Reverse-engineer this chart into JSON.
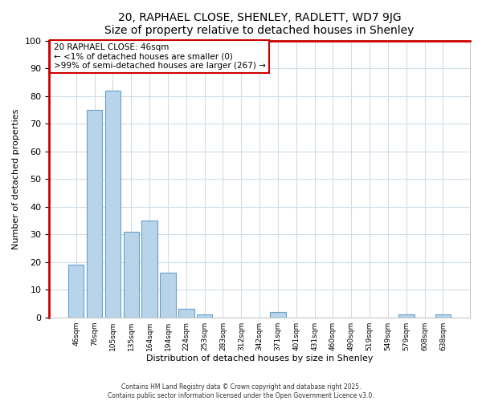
{
  "title": "20, RAPHAEL CLOSE, SHENLEY, RADLETT, WD7 9JG",
  "subtitle": "Size of property relative to detached houses in Shenley",
  "xlabel": "Distribution of detached houses by size in Shenley",
  "ylabel": "Number of detached properties",
  "categories": [
    "46sqm",
    "76sqm",
    "105sqm",
    "135sqm",
    "164sqm",
    "194sqm",
    "224sqm",
    "253sqm",
    "283sqm",
    "312sqm",
    "342sqm",
    "371sqm",
    "401sqm",
    "431sqm",
    "460sqm",
    "490sqm",
    "519sqm",
    "549sqm",
    "579sqm",
    "608sqm",
    "638sqm"
  ],
  "values": [
    19,
    75,
    82,
    31,
    35,
    16,
    3,
    1,
    0,
    0,
    0,
    2,
    0,
    0,
    0,
    0,
    0,
    0,
    1,
    0,
    1
  ],
  "highlight_index": 0,
  "bar_color_normal": "#b8d4ea",
  "bar_color_highlight": "#b8d4ea",
  "bar_edge_normal": "#6aa0c8",
  "bar_edge_highlight": "#6aa0c8",
  "left_border_color": "#cc0000",
  "ylim": [
    0,
    100
  ],
  "yticks": [
    0,
    10,
    20,
    30,
    40,
    50,
    60,
    70,
    80,
    90,
    100
  ],
  "annotation_title": "20 RAPHAEL CLOSE: 46sqm",
  "annotation_line1": "← <1% of detached houses are smaller (0)",
  "annotation_line2": ">99% of semi-detached houses are larger (267) →",
  "footer1": "Contains HM Land Registry data © Crown copyright and database right 2025.",
  "footer2": "Contains public sector information licensed under the Open Government Licence v3.0.",
  "background_color": "#ffffff",
  "axes_bg_color": "#ffffff",
  "grid_color": "#d0dce8",
  "ann_box_color": "#cc0000",
  "title_fontsize": 10,
  "subtitle_fontsize": 9
}
